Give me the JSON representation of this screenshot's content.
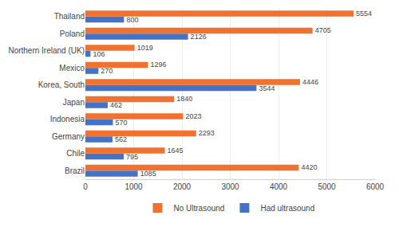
{
  "chart_data": {
    "type": "bar",
    "orientation": "horizontal",
    "categories": [
      "Brazil",
      "Chile",
      "Germany",
      "Indonesia",
      "Japan",
      "Korea, South",
      "Mexico",
      "Northern Ireland (UK)",
      "Poland",
      "Thailand"
    ],
    "series": [
      {
        "name": "No Ultrasound",
        "color": "#f07230",
        "values": [
          4420,
          1645,
          2293,
          2023,
          1840,
          4446,
          1296,
          1019,
          4705,
          5554
        ]
      },
      {
        "name": "Had ultrasound",
        "color": "#4472c4",
        "values": [
          1085,
          795,
          562,
          570,
          462,
          3544,
          270,
          106,
          2126,
          800
        ]
      }
    ],
    "xlim": [
      0,
      6000
    ],
    "xticks": [
      0,
      1000,
      2000,
      3000,
      4000,
      5000,
      6000
    ],
    "grid": true,
    "legend": "bottom",
    "data_labels": true
  }
}
